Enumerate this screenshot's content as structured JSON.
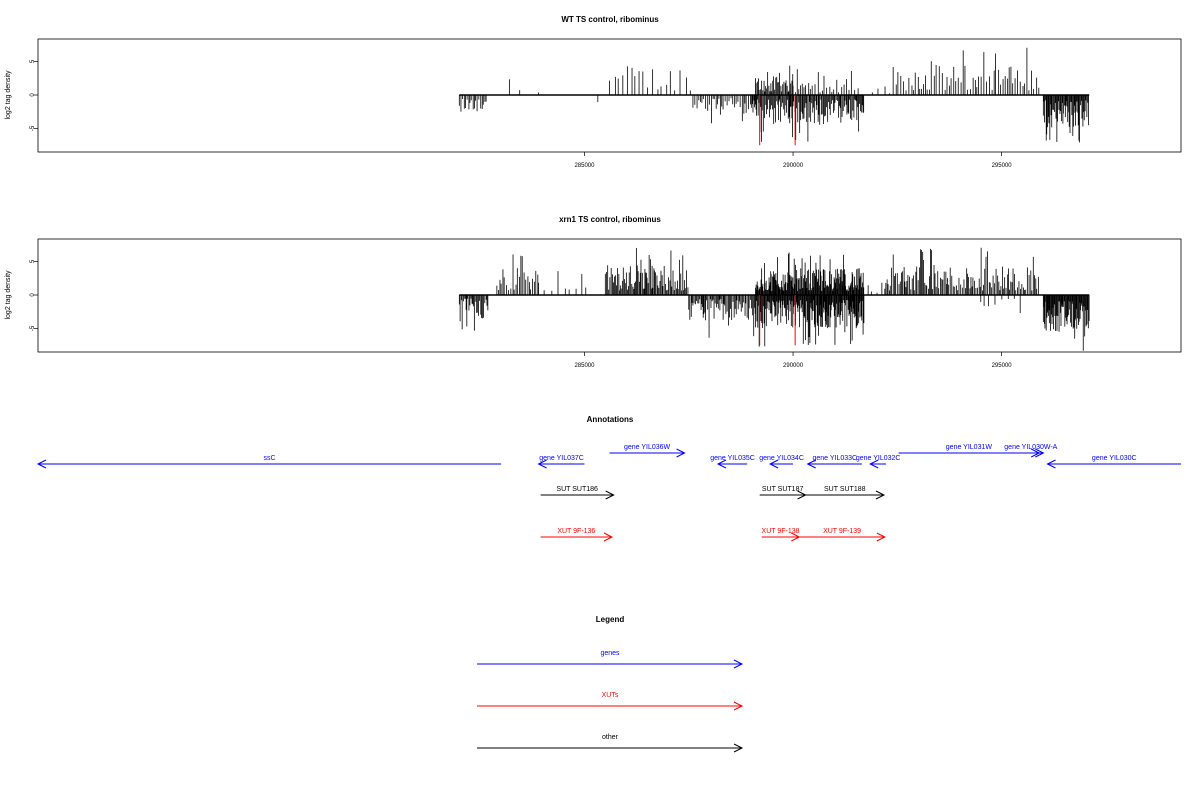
{
  "chart_data": [
    {
      "type": "bar",
      "title": "WT TS control, ribominus",
      "ylabel": "log2 tag density",
      "xlim": [
        271900,
        299300
      ],
      "ylim": [
        -8,
        8
      ],
      "xticks": [
        285000,
        290000,
        295000
      ],
      "yticks": [
        -5,
        0,
        5
      ],
      "ytick_labels": [
        "-5",
        "0",
        "5"
      ],
      "baseline": {
        "x0": 282000,
        "x1": 297100
      },
      "highlight_color": "#ff0000",
      "highlights": [
        {
          "x": 289200,
          "y": -7.5
        },
        {
          "x": 290050,
          "y": -7.5
        }
      ],
      "clusters": [
        {
          "x0": 282000,
          "x1": 282650,
          "step": 35,
          "sign": -1,
          "amp": 2.5
        },
        {
          "x0": 283200,
          "x1": 284200,
          "step": 400,
          "sign": 1,
          "amp": 2.5
        },
        {
          "x0": 285320,
          "x1": 285360,
          "step": 40,
          "sign": -1,
          "amp": 2.5
        },
        {
          "x0": 285600,
          "x1": 287600,
          "step": 110,
          "sign": 1,
          "amp": 4.5
        },
        {
          "x0": 287600,
          "x1": 289100,
          "step": 40,
          "sign": -1,
          "amp": 3
        },
        {
          "x0": 289100,
          "x1": 290000,
          "step": 24,
          "sign": 1,
          "amp": 2.8
        },
        {
          "x0": 289000,
          "x1": 291700,
          "step": 22,
          "sign": -1,
          "amp": 4.5
        },
        {
          "x0": 290000,
          "x1": 291600,
          "step": 60,
          "sign": 1,
          "amp": 2.5
        },
        {
          "x0": 291900,
          "x1": 292400,
          "step": 150,
          "sign": 1,
          "amp": 1.5
        },
        {
          "x0": 292400,
          "x1": 295900,
          "step": 55,
          "sign": 1,
          "amp": 4.5
        },
        {
          "x0": 296000,
          "x1": 297100,
          "step": 18,
          "sign": -1,
          "amp": 5
        }
      ]
    },
    {
      "type": "bar",
      "title": "xrn1 TS control, ribominus",
      "ylabel": "log2 tag density",
      "xlim": [
        271900,
        299300
      ],
      "ylim": [
        -8,
        8
      ],
      "xticks": [
        285000,
        290000,
        295000
      ],
      "yticks": [
        -5,
        0,
        5
      ],
      "ytick_labels": [
        "-5",
        "0",
        "5"
      ],
      "baseline": {
        "x0": 282000,
        "x1": 297100
      },
      "highlight_color": "#ff0000",
      "highlights": [
        {
          "x": 289200,
          "y": -7.5
        },
        {
          "x": 290050,
          "y": -7.5
        }
      ],
      "clusters": [
        {
          "x0": 282000,
          "x1": 282700,
          "step": 25,
          "sign": -1,
          "amp": 3.5
        },
        {
          "x0": 282900,
          "x1": 283900,
          "step": 40,
          "sign": 1,
          "amp": 4
        },
        {
          "x0": 283900,
          "x1": 285100,
          "step": 140,
          "sign": 1,
          "amp": 2.5
        },
        {
          "x0": 285500,
          "x1": 287500,
          "step": 25,
          "sign": 1,
          "amp": 4.5
        },
        {
          "x0": 287500,
          "x1": 289100,
          "step": 25,
          "sign": -1,
          "amp": 4
        },
        {
          "x0": 289100,
          "x1": 291700,
          "step": 15,
          "sign": 1,
          "amp": 4
        },
        {
          "x0": 289100,
          "x1": 291700,
          "step": 15,
          "sign": -1,
          "amp": 5
        },
        {
          "x0": 291800,
          "x1": 292200,
          "step": 120,
          "sign": 1,
          "amp": 2
        },
        {
          "x0": 292200,
          "x1": 295900,
          "step": 30,
          "sign": 1,
          "amp": 4.5
        },
        {
          "x0": 294500,
          "x1": 295500,
          "step": 120,
          "sign": -1,
          "amp": 2
        },
        {
          "x0": 296000,
          "x1": 297100,
          "step": 15,
          "sign": -1,
          "amp": 5.5
        }
      ]
    }
  ],
  "annotations": {
    "title": "Annotations",
    "xlim": [
      271900,
      299300
    ],
    "colors": {
      "genes": "#0000ff",
      "XUTs": "#ff0000",
      "other": "#000000"
    },
    "features": [
      {
        "label": "ssC",
        "kind": "genes",
        "start": 271900,
        "end": 283000,
        "strand": "-",
        "row": 1
      },
      {
        "label": "gene YIL037C",
        "kind": "genes",
        "start": 283900,
        "end": 285000,
        "strand": "-",
        "row": 1
      },
      {
        "label": "gene YIL036W",
        "kind": "genes",
        "start": 285600,
        "end": 287400,
        "strand": "+",
        "row": 0
      },
      {
        "label": "gene YIL035C",
        "kind": "genes",
        "start": 288200,
        "end": 288900,
        "strand": "-",
        "row": 1
      },
      {
        "label": "gene YIL034C",
        "kind": "genes",
        "start": 289450,
        "end": 290000,
        "strand": "-",
        "row": 1
      },
      {
        "label": "gene YIL033C",
        "kind": "genes",
        "start": 290350,
        "end": 291650,
        "strand": "-",
        "row": 1
      },
      {
        "label": "gene YIL032C",
        "kind": "genes",
        "start": 291850,
        "end": 292230,
        "strand": "-",
        "row": 1
      },
      {
        "label": "gene YIL031W",
        "kind": "genes",
        "start": 292530,
        "end": 295900,
        "strand": "+",
        "row": 0
      },
      {
        "label": "gene YIL030W-A",
        "kind": "genes",
        "start": 295400,
        "end": 296000,
        "strand": "+",
        "row": 0
      },
      {
        "label": "gene YIL030C",
        "kind": "genes",
        "start": 296100,
        "end": 299300,
        "strand": "-",
        "row": 1
      },
      {
        "label": "SUT SUT186",
        "kind": "other",
        "start": 283950,
        "end": 285700,
        "strand": "+",
        "row": 2
      },
      {
        "label": "SUT SUT187",
        "kind": "other",
        "start": 289200,
        "end": 290300,
        "strand": "+",
        "row": 2
      },
      {
        "label": "SUT SUT188",
        "kind": "other",
        "start": 290300,
        "end": 292180,
        "strand": "+",
        "row": 2
      },
      {
        "label": "XUT 9F-136",
        "kind": "XUTs",
        "start": 283950,
        "end": 285660,
        "strand": "+",
        "row": 3
      },
      {
        "label": "XUT 9F-138",
        "kind": "XUTs",
        "start": 289250,
        "end": 290150,
        "strand": "+",
        "row": 3
      },
      {
        "label": "XUT 9F-139",
        "kind": "XUTs",
        "start": 290150,
        "end": 292200,
        "strand": "+",
        "row": 3
      }
    ]
  },
  "legend": {
    "title": "Legend",
    "items": [
      {
        "label": "genes",
        "color": "#0000ff"
      },
      {
        "label": "XUTs",
        "color": "#ff0000"
      },
      {
        "label": "other",
        "color": "#000000"
      }
    ]
  }
}
